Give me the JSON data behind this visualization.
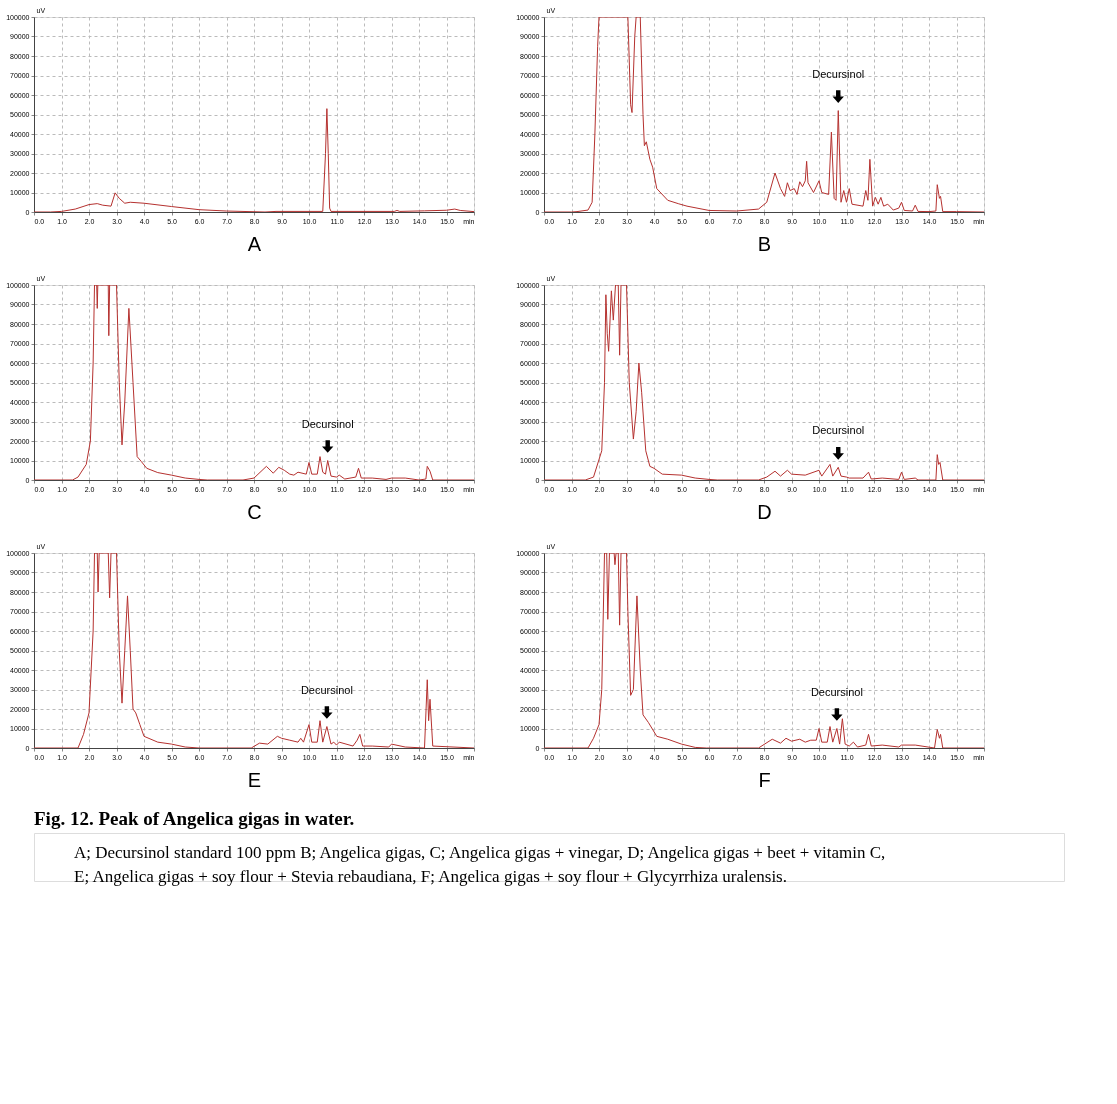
{
  "chart_data": [
    {
      "type": "line",
      "xlabel": "A",
      "ylabel": "uV",
      "color": "#b5312f",
      "grid": true,
      "legend": false,
      "xlim": [
        0,
        16
      ],
      "ylim": [
        0,
        100000
      ],
      "xticks": [
        {
          "value": 0,
          "label": "0.0"
        },
        {
          "value": 1,
          "label": "1.0"
        },
        {
          "value": 2,
          "label": "2.0"
        },
        {
          "value": 3,
          "label": "3.0"
        },
        {
          "value": 4,
          "label": "4.0"
        },
        {
          "value": 5,
          "label": "5.0"
        },
        {
          "value": 6,
          "label": "6.0"
        },
        {
          "value": 7,
          "label": "7.0"
        },
        {
          "value": 8,
          "label": "8.0"
        },
        {
          "value": 9,
          "label": "9.0"
        },
        {
          "value": 10,
          "label": "10.0"
        },
        {
          "value": 11,
          "label": "11.0"
        },
        {
          "value": 12,
          "label": "12.0"
        },
        {
          "value": 13,
          "label": "13.0"
        },
        {
          "value": 14,
          "label": "14.0"
        },
        {
          "value": 15,
          "label": "15.0"
        },
        {
          "value": 16,
          "label": "min"
        }
      ],
      "yticks": [
        0,
        10000,
        20000,
        30000,
        40000,
        50000,
        60000,
        70000,
        80000,
        90000,
        100000
      ],
      "x": [
        0,
        0.6,
        1.0,
        1.5,
        2.0,
        2.3,
        2.5,
        2.8,
        2.95,
        3.1,
        3.3,
        3.5,
        4.0,
        5.0,
        6.0,
        7.0,
        8.4,
        8.8,
        10.5,
        10.6,
        10.65,
        10.7,
        10.75,
        10.8,
        13.1,
        13.2,
        13.3,
        14.2,
        15.0,
        15.3,
        15.5,
        16
      ],
      "values": [
        0,
        0,
        300,
        1500,
        3800,
        4300,
        3500,
        3000,
        9800,
        7000,
        4500,
        5000,
        4500,
        2800,
        1200,
        500,
        0,
        300,
        300,
        30000,
        53000,
        30000,
        2000,
        300,
        300,
        800,
        300,
        600,
        900,
        1500,
        800,
        200
      ]
    },
    {
      "type": "line",
      "xlabel": "B",
      "ylabel": "uV",
      "color": "#b5312f",
      "grid": true,
      "legend": false,
      "xlim": [
        0,
        16
      ],
      "ylim": [
        0,
        100000
      ],
      "xticks": [
        {
          "value": 0,
          "label": "0.0"
        },
        {
          "value": 1,
          "label": "1.0"
        },
        {
          "value": 2,
          "label": "2.0"
        },
        {
          "value": 3,
          "label": "3.0"
        },
        {
          "value": 4,
          "label": "4.0"
        },
        {
          "value": 5,
          "label": "5.0"
        },
        {
          "value": 6,
          "label": "6.0"
        },
        {
          "value": 7,
          "label": "7.0"
        },
        {
          "value": 8,
          "label": "8.0"
        },
        {
          "value": 9,
          "label": "9.0"
        },
        {
          "value": 10,
          "label": "10.0"
        },
        {
          "value": 11,
          "label": "11.0"
        },
        {
          "value": 12,
          "label": "12.0"
        },
        {
          "value": 13,
          "label": "13.0"
        },
        {
          "value": 14,
          "label": "14.0"
        },
        {
          "value": 15,
          "label": "15.0"
        },
        {
          "value": 16,
          "label": "min"
        }
      ],
      "yticks": [
        0,
        10000,
        20000,
        30000,
        40000,
        50000,
        60000,
        70000,
        80000,
        90000,
        100000
      ],
      "annotations": [
        {
          "text": "Decursinol",
          "x": 10.7,
          "y": 52000
        }
      ],
      "x": [
        0,
        1.0,
        1.2,
        1.6,
        1.75,
        1.85,
        1.95,
        2.0,
        3.05,
        3.15,
        3.2,
        3.3,
        3.35,
        3.5,
        3.6,
        3.65,
        3.72,
        3.85,
        3.95,
        4.1,
        4.5,
        4.9,
        5.2,
        6.0,
        7.0,
        7.8,
        8.1,
        8.4,
        8.6,
        8.75,
        8.85,
        8.95,
        9.1,
        9.2,
        9.3,
        9.4,
        9.5,
        9.55,
        9.6,
        9.8,
        10.0,
        10.1,
        10.35,
        10.45,
        10.55,
        10.62,
        10.7,
        10.8,
        10.9,
        11.0,
        11.1,
        11.2,
        11.6,
        11.7,
        11.78,
        11.85,
        11.95,
        12.05,
        12.15,
        12.25,
        12.35,
        12.5,
        12.7,
        12.9,
        13.0,
        13.1,
        13.4,
        13.5,
        13.6,
        14.0,
        14.25,
        14.3,
        14.38,
        14.42,
        14.5,
        15.0,
        16
      ],
      "values": [
        0,
        0,
        200,
        1000,
        5000,
        40000,
        85000,
        100000,
        100000,
        55000,
        51000,
        90000,
        100000,
        100000,
        50000,
        34000,
        36000,
        27000,
        23000,
        12000,
        6000,
        4200,
        3000,
        800,
        500,
        1500,
        5000,
        20000,
        12000,
        8000,
        15000,
        11000,
        12000,
        9000,
        15500,
        13000,
        16000,
        26000,
        15000,
        10000,
        16000,
        10000,
        9000,
        41000,
        7000,
        6000,
        52000,
        5000,
        11000,
        5000,
        12000,
        4000,
        3000,
        11000,
        6000,
        27000,
        3000,
        7500,
        4000,
        7500,
        3000,
        4000,
        1000,
        2000,
        5000,
        800,
        500,
        3500,
        300,
        200,
        500,
        14000,
        7000,
        8000,
        200,
        200,
        0
      ]
    },
    {
      "type": "line",
      "xlabel": "C",
      "ylabel": "uV",
      "color": "#b5312f",
      "grid": true,
      "legend": false,
      "xlim": [
        0,
        16
      ],
      "ylim": [
        0,
        100000
      ],
      "xticks": [
        {
          "value": 0,
          "label": "0.0"
        },
        {
          "value": 1,
          "label": "1.0"
        },
        {
          "value": 2,
          "label": "2.0"
        },
        {
          "value": 3,
          "label": "3.0"
        },
        {
          "value": 4,
          "label": "4.0"
        },
        {
          "value": 5,
          "label": "5.0"
        },
        {
          "value": 6,
          "label": "6.0"
        },
        {
          "value": 7,
          "label": "7.0"
        },
        {
          "value": 8,
          "label": "8.0"
        },
        {
          "value": 9,
          "label": "9.0"
        },
        {
          "value": 10,
          "label": "10.0"
        },
        {
          "value": 11,
          "label": "11.0"
        },
        {
          "value": 12,
          "label": "12.0"
        },
        {
          "value": 13,
          "label": "13.0"
        },
        {
          "value": 14,
          "label": "14.0"
        },
        {
          "value": 15,
          "label": "15.0"
        },
        {
          "value": 16,
          "label": "min"
        }
      ],
      "yticks": [
        0,
        10000,
        20000,
        30000,
        40000,
        50000,
        60000,
        70000,
        80000,
        90000,
        100000
      ],
      "annotations": [
        {
          "text": "Decursinol",
          "x": 10.68,
          "y": 10000
        }
      ],
      "x": [
        0,
        1.4,
        1.6,
        1.9,
        2.05,
        2.15,
        2.2,
        2.28,
        2.3,
        2.32,
        2.7,
        2.72,
        2.75,
        3.0,
        3.1,
        3.2,
        3.3,
        3.45,
        3.6,
        3.75,
        3.9,
        4.1,
        4.5,
        5.0,
        5.5,
        6.0,
        6.3,
        7.6,
        8.0,
        8.45,
        8.7,
        8.9,
        9.1,
        9.3,
        9.45,
        9.6,
        9.9,
        10.0,
        10.1,
        10.3,
        10.4,
        10.5,
        10.6,
        10.68,
        10.8,
        11.0,
        11.1,
        11.3,
        11.7,
        11.8,
        11.9,
        12.3,
        12.8,
        13.0,
        13.5,
        14.0,
        14.25,
        14.3,
        14.4,
        14.5,
        16
      ],
      "values": [
        0,
        0,
        1500,
        8000,
        20000,
        60000,
        100000,
        100000,
        88000,
        100000,
        100000,
        74000,
        100000,
        100000,
        50000,
        18000,
        40000,
        88000,
        50000,
        12000,
        9500,
        6000,
        3800,
        2500,
        1000,
        300,
        0,
        0,
        1000,
        7000,
        3500,
        6500,
        5000,
        3000,
        2500,
        4000,
        3000,
        9000,
        3000,
        3000,
        12000,
        4000,
        3000,
        10000,
        2000,
        1500,
        2500,
        500,
        1500,
        6000,
        1000,
        1000,
        300,
        1000,
        1000,
        0,
        500,
        7000,
        4500,
        0,
        0
      ]
    },
    {
      "type": "line",
      "xlabel": "D",
      "ylabel": "uV",
      "color": "#b5312f",
      "grid": true,
      "legend": false,
      "xlim": [
        0,
        16
      ],
      "ylim": [
        0,
        100000
      ],
      "xticks": [
        {
          "value": 0,
          "label": "0.0"
        },
        {
          "value": 1,
          "label": "1.0"
        },
        {
          "value": 2,
          "label": "2.0"
        },
        {
          "value": 3,
          "label": "3.0"
        },
        {
          "value": 4,
          "label": "4.0"
        },
        {
          "value": 5,
          "label": "5.0"
        },
        {
          "value": 6,
          "label": "6.0"
        },
        {
          "value": 7,
          "label": "7.0"
        },
        {
          "value": 8,
          "label": "8.0"
        },
        {
          "value": 9,
          "label": "9.0"
        },
        {
          "value": 10,
          "label": "10.0"
        },
        {
          "value": 11,
          "label": "11.0"
        },
        {
          "value": 12,
          "label": "12.0"
        },
        {
          "value": 13,
          "label": "13.0"
        },
        {
          "value": 14,
          "label": "14.0"
        },
        {
          "value": 15,
          "label": "15.0"
        },
        {
          "value": 16,
          "label": "min"
        }
      ],
      "yticks": [
        0,
        10000,
        20000,
        30000,
        40000,
        50000,
        60000,
        70000,
        80000,
        90000,
        100000
      ],
      "annotations": [
        {
          "text": "Decursinol",
          "x": 10.7,
          "y": 6500
        }
      ],
      "x": [
        0,
        1.5,
        1.8,
        2.1,
        2.2,
        2.25,
        2.3,
        2.35,
        2.45,
        2.52,
        2.6,
        2.7,
        2.75,
        2.8,
        3.0,
        3.1,
        3.25,
        3.35,
        3.45,
        3.55,
        3.7,
        3.85,
        4.0,
        4.3,
        5.0,
        5.5,
        6.0,
        6.3,
        7.8,
        8.1,
        8.4,
        8.6,
        8.85,
        9.0,
        9.5,
        10.0,
        10.1,
        10.4,
        10.5,
        10.7,
        10.8,
        11.0,
        11.1,
        11.6,
        11.8,
        11.9,
        12.3,
        12.9,
        13.0,
        13.1,
        13.5,
        13.6,
        14.25,
        14.3,
        14.35,
        14.4,
        14.5,
        16
      ],
      "values": [
        0,
        0,
        1500,
        15000,
        50000,
        95000,
        75000,
        66000,
        97000,
        82000,
        100000,
        100000,
        64000,
        100000,
        100000,
        50000,
        21000,
        35000,
        60000,
        45000,
        15000,
        7000,
        6000,
        3000,
        2500,
        1000,
        300,
        0,
        0,
        1500,
        4500,
        2000,
        5000,
        3000,
        2500,
        5000,
        2000,
        8000,
        2000,
        6500,
        2000,
        1500,
        1000,
        1000,
        4000,
        500,
        1000,
        300,
        4000,
        300,
        1000,
        0,
        0,
        13000,
        8000,
        9000,
        0,
        0
      ]
    },
    {
      "type": "line",
      "xlabel": "E",
      "ylabel": "uV",
      "color": "#b5312f",
      "grid": true,
      "legend": false,
      "xlim": [
        0,
        16
      ],
      "ylim": [
        0,
        100000
      ],
      "xticks": [
        {
          "value": 0,
          "label": "0.0"
        },
        {
          "value": 1,
          "label": "1.0"
        },
        {
          "value": 2,
          "label": "2.0"
        },
        {
          "value": 3,
          "label": "3.0"
        },
        {
          "value": 4,
          "label": "4.0"
        },
        {
          "value": 5,
          "label": "5.0"
        },
        {
          "value": 6,
          "label": "6.0"
        },
        {
          "value": 7,
          "label": "7.0"
        },
        {
          "value": 8,
          "label": "8.0"
        },
        {
          "value": 9,
          "label": "9.0"
        },
        {
          "value": 10,
          "label": "10.0"
        },
        {
          "value": 11,
          "label": "11.0"
        },
        {
          "value": 12,
          "label": "12.0"
        },
        {
          "value": 13,
          "label": "13.0"
        },
        {
          "value": 14,
          "label": "14.0"
        },
        {
          "value": 15,
          "label": "15.0"
        },
        {
          "value": 16,
          "label": "min"
        }
      ],
      "yticks": [
        0,
        10000,
        20000,
        30000,
        40000,
        50000,
        60000,
        70000,
        80000,
        90000,
        100000
      ],
      "annotations": [
        {
          "text": "Decursinol",
          "x": 10.65,
          "y": 11000
        }
      ],
      "x": [
        0,
        1.6,
        1.8,
        2.0,
        2.15,
        2.2,
        2.3,
        2.33,
        2.37,
        2.7,
        2.75,
        2.8,
        3.0,
        3.1,
        3.2,
        3.3,
        3.4,
        3.5,
        3.6,
        3.7,
        3.85,
        4.0,
        4.5,
        5.0,
        5.5,
        6.0,
        7.9,
        8.2,
        8.5,
        8.85,
        9.0,
        9.3,
        9.6,
        9.7,
        9.8,
        10.0,
        10.1,
        10.3,
        10.4,
        10.5,
        10.65,
        10.8,
        10.9,
        11.0,
        11.1,
        11.6,
        11.75,
        11.85,
        11.95,
        12.3,
        12.9,
        13.0,
        13.5,
        14.2,
        14.3,
        14.35,
        14.4,
        14.5,
        16
      ],
      "values": [
        0,
        0,
        7000,
        18000,
        60000,
        100000,
        100000,
        80000,
        100000,
        100000,
        77000,
        100000,
        100000,
        50000,
        23000,
        50000,
        78000,
        50000,
        20000,
        18000,
        12000,
        6000,
        3000,
        2000,
        500,
        0,
        0,
        2500,
        2000,
        6000,
        5000,
        4000,
        3000,
        5000,
        3000,
        12000,
        3000,
        3000,
        14000,
        3000,
        11000,
        2000,
        3000,
        1500,
        3000,
        1000,
        4000,
        7000,
        1000,
        1000,
        500,
        2000,
        500,
        0,
        35000,
        14000,
        25000,
        1000,
        0
      ]
    },
    {
      "type": "line",
      "xlabel": "F",
      "ylabel": "uV",
      "color": "#b5312f",
      "grid": true,
      "legend": false,
      "xlim": [
        0,
        16
      ],
      "ylim": [
        0,
        100000
      ],
      "xticks": [
        {
          "value": 0,
          "label": "0.0"
        },
        {
          "value": 1,
          "label": "1.0"
        },
        {
          "value": 2,
          "label": "2.0"
        },
        {
          "value": 3,
          "label": "3.0"
        },
        {
          "value": 4,
          "label": "4.0"
        },
        {
          "value": 5,
          "label": "5.0"
        },
        {
          "value": 6,
          "label": "6.0"
        },
        {
          "value": 7,
          "label": "7.0"
        },
        {
          "value": 8,
          "label": "8.0"
        },
        {
          "value": 9,
          "label": "9.0"
        },
        {
          "value": 10,
          "label": "10.0"
        },
        {
          "value": 11,
          "label": "11.0"
        },
        {
          "value": 12,
          "label": "12.0"
        },
        {
          "value": 13,
          "label": "13.0"
        },
        {
          "value": 14,
          "label": "14.0"
        },
        {
          "value": 15,
          "label": "15.0"
        },
        {
          "value": 16,
          "label": "min"
        }
      ],
      "yticks": [
        0,
        10000,
        20000,
        30000,
        40000,
        50000,
        60000,
        70000,
        80000,
        90000,
        100000
      ],
      "annotations": [
        {
          "text": "Decursinol",
          "x": 10.65,
          "y": 10000
        }
      ],
      "x": [
        0,
        1.6,
        1.8,
        2.0,
        2.1,
        2.2,
        2.28,
        2.32,
        2.38,
        2.55,
        2.58,
        2.62,
        2.7,
        2.75,
        2.8,
        3.0,
        3.05,
        3.15,
        3.25,
        3.38,
        3.5,
        3.6,
        3.8,
        4.1,
        4.5,
        5.0,
        5.5,
        5.9,
        7.8,
        8.3,
        8.6,
        8.8,
        9.0,
        9.3,
        9.5,
        9.7,
        9.9,
        10.0,
        10.1,
        10.3,
        10.4,
        10.5,
        10.65,
        10.75,
        10.85,
        10.95,
        11.1,
        11.25,
        11.4,
        11.7,
        11.8,
        11.9,
        12.3,
        12.9,
        13.0,
        13.5,
        14.2,
        14.3,
        14.38,
        14.42,
        14.5,
        16
      ],
      "values": [
        0,
        0,
        5000,
        12000,
        30000,
        100000,
        100000,
        66000,
        100000,
        100000,
        94000,
        100000,
        100000,
        63000,
        100000,
        100000,
        70000,
        27000,
        30000,
        78000,
        40000,
        17000,
        13000,
        6000,
        4500,
        2000,
        300,
        0,
        0,
        4500,
        2500,
        5000,
        3500,
        4500,
        3000,
        4000,
        4000,
        10000,
        3000,
        3000,
        11000,
        3000,
        10000,
        2000,
        15000,
        2000,
        1000,
        3000,
        500,
        1500,
        7000,
        1000,
        1500,
        500,
        1500,
        1500,
        0,
        9500,
        5000,
        7000,
        0,
        0
      ]
    },
    {
      "type": "other",
      "title": "Fig. 12. Peak of Angelica gigas in water.",
      "annotations": [
        "A; Decursinol standard 100 ppm B; Angelica gigas, C; Angelica gigas + vinegar, D; Angelica gigas + beet + vitamin C, E; Angelica gigas + soy flour + Stevia rebaudiana, F; Angelica gigas + soy flour + Glycyrrhiza uralensis."
      ]
    }
  ]
}
